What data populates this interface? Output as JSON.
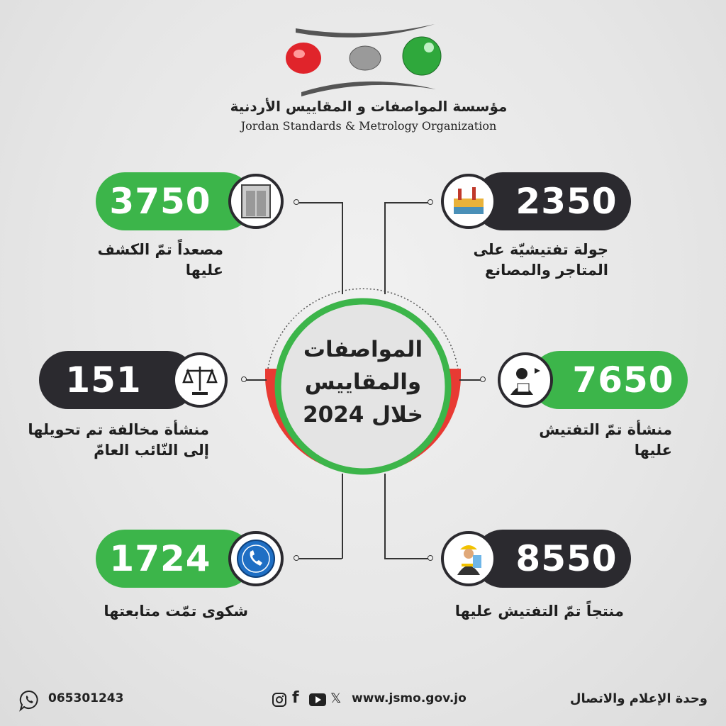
{
  "header": {
    "org_name_ar": "مؤسسة المواصفات و المقاييس الأردنية",
    "org_name_en": "Jordan Standards & Metrology Organization",
    "logo_colors": [
      "#e0242b",
      "#9a9a9a",
      "#2fa83c"
    ]
  },
  "center": {
    "line1": "المواصفات",
    "line2": "والمقاييس",
    "line3": "خلال 2024"
  },
  "stats": [
    {
      "value": "3750",
      "label1": "مصعداً تمّ الكشف",
      "label2": "عليها",
      "icon": "elevator-icon",
      "color": "#3cb54a"
    },
    {
      "value": "2350",
      "label1": "جولة تفتيشيّة على",
      "label2": "المتاجر والمصانع",
      "icon": "factory-icon",
      "color": "#2b2a2f"
    },
    {
      "value": "151",
      "label1": "منشأة مخالفة تم تحويلها",
      "label2": "إلى النّائب العامّ",
      "icon": "scales-icon",
      "color": "#2b2a2f"
    },
    {
      "value": "7650",
      "label1": "منشأة تمّ التفتيش",
      "label2": "عليها",
      "icon": "inspector-icon",
      "color": "#3cb54a"
    },
    {
      "value": "1724",
      "label1": "شكوى تمّت متابعتها",
      "label2": "",
      "icon": "phone-icon",
      "color": "#3cb54a"
    },
    {
      "value": "8550",
      "label1": "منتجاً تمّ التفتيش عليها",
      "label2": "",
      "icon": "worker-icon",
      "color": "#2b2a2f"
    }
  ],
  "footer": {
    "phone": "065301243",
    "website": "www.jsmo.gov.jo",
    "department": "وحدة الإعلام والاتصال",
    "social": [
      "instagram-icon",
      "facebook-icon",
      "youtube-icon",
      "x-icon"
    ]
  }
}
